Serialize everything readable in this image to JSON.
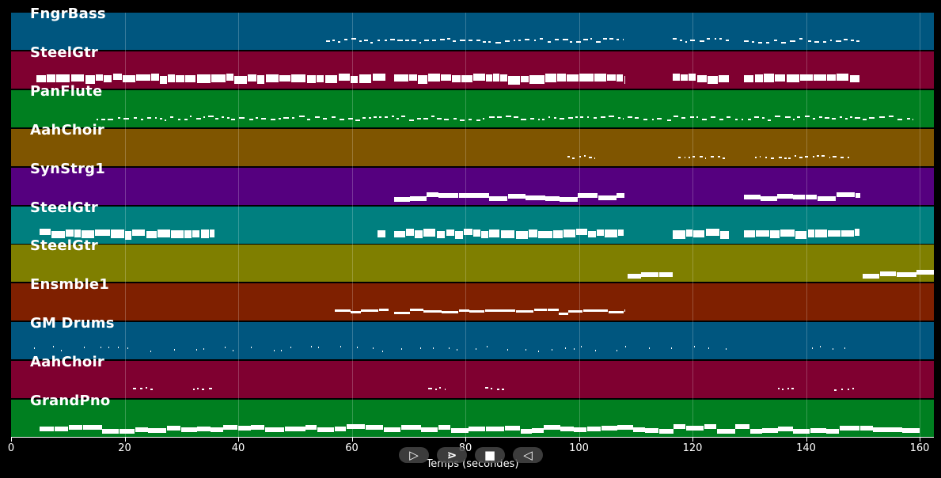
{
  "xaxis": {
    "label": "Temps (secondes)",
    "min": 0,
    "max": 162.5,
    "ticks": [
      "0",
      "20",
      "40",
      "60",
      "80",
      "100",
      "120",
      "140",
      "160"
    ]
  },
  "controls": [
    {
      "name": "play-icon",
      "glyph": "▷"
    },
    {
      "name": "fast-forward-icon",
      "glyph": "⋗"
    },
    {
      "name": "stop-icon",
      "glyph": "■"
    },
    {
      "name": "rewind-icon",
      "glyph": "◁"
    }
  ],
  "tracks": [
    {
      "name": "FngrBass",
      "color": "#00567f",
      "style": "small",
      "segments": [
        [
          55.5,
          108
        ],
        [
          116.5,
          126.5
        ],
        [
          129,
          149.5
        ]
      ]
    },
    {
      "name": "SteelGtr",
      "color": "#7f0030",
      "style": "strum",
      "segments": [
        [
          4.5,
          66
        ],
        [
          67.5,
          108
        ],
        [
          116.5,
          126.5
        ],
        [
          129,
          149.5
        ]
      ]
    },
    {
      "name": "PanFlute",
      "color": "#007f20",
      "style": "small",
      "segments": [
        [
          15,
          108
        ],
        [
          108.5,
          159
        ]
      ]
    },
    {
      "name": "AahChoir",
      "color": "#7f5500",
      "style": "tiny",
      "segments": [
        [
          98,
          103
        ],
        [
          117.5,
          126
        ],
        [
          131,
          148
        ]
      ]
    },
    {
      "name": "SynStrg1",
      "color": "#55007f",
      "style": "thick",
      "segments": [
        [
          67.5,
          108
        ],
        [
          129,
          149.5
        ]
      ]
    },
    {
      "name": "SteelGtr",
      "color": "#007f7f",
      "style": "strum",
      "segments": [
        [
          5,
          36
        ],
        [
          64.5,
          66
        ],
        [
          67.5,
          108
        ],
        [
          116.5,
          126.5
        ],
        [
          129,
          149.5
        ]
      ]
    },
    {
      "name": "SteelGtr",
      "color": "#7f7f00",
      "style": "thick",
      "segments": [
        [
          108.5,
          116.5
        ],
        [
          150,
          162.5
        ]
      ]
    },
    {
      "name": "Ensmble1",
      "color": "#7f2000",
      "style": "medium",
      "segments": [
        [
          57,
          66.5
        ],
        [
          67.5,
          108
        ]
      ]
    },
    {
      "name": "GM Drums",
      "color": "#00567f",
      "style": "drum",
      "segments": [
        [
          4,
          128
        ],
        [
          141,
          148
        ]
      ]
    },
    {
      "name": "AahChoir",
      "color": "#7f0030",
      "style": "tiny",
      "segments": [
        [
          21.5,
          25.5
        ],
        [
          32,
          35.5
        ],
        [
          73.5,
          76.5
        ],
        [
          83.5,
          87
        ],
        [
          135,
          138
        ],
        [
          145,
          148.5
        ]
      ]
    },
    {
      "name": "GrandPno",
      "color": "#007f20",
      "style": "thick",
      "segments": [
        [
          5,
          160
        ]
      ]
    }
  ]
}
